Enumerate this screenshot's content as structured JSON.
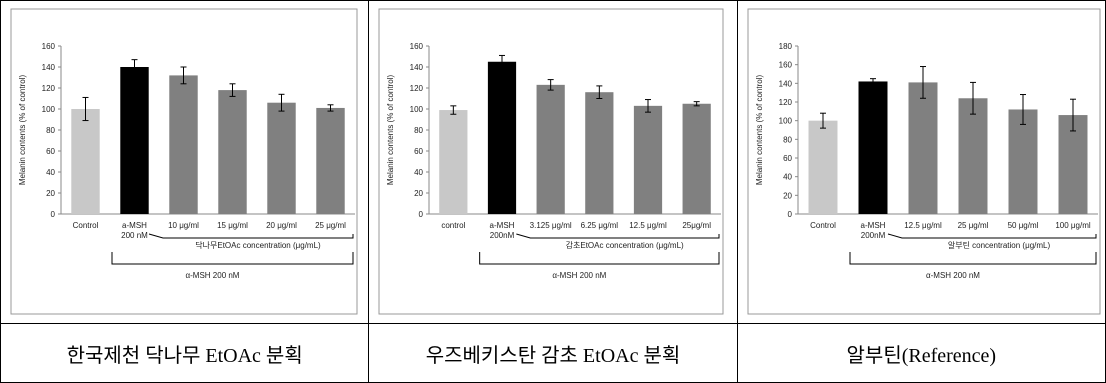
{
  "chart_data": [
    {
      "type": "bar",
      "y_label": "Melanin contents (% of control)",
      "categories": [
        "Control",
        "a-MSH\n200 nM",
        "10 μg/ml",
        "15 μg/ml",
        "20 μg/ml",
        "25 μg/ml"
      ],
      "values": [
        100,
        140,
        132,
        118,
        106,
        101
      ],
      "errors": [
        11,
        7,
        8,
        6,
        8,
        3
      ],
      "colors": [
        "#c8c8c8",
        "#000000",
        "#808080",
        "#808080",
        "#808080",
        "#808080"
      ],
      "ylim": [
        0,
        160
      ],
      "yticks": [
        0,
        20,
        40,
        60,
        80,
        100,
        120,
        140,
        160
      ],
      "concentration_label": "닥나무EtOAc concentration (μg/mL)",
      "group_label": "α-MSH 200 nM"
    },
    {
      "type": "bar",
      "y_label": "Melanin contents (% of control)",
      "categories": [
        "control",
        "a-MSH\n200nM",
        "3.125 μg/ml",
        "6.25 μg/ml",
        "12.5 μg/ml",
        "25μg/ml"
      ],
      "values": [
        99,
        145,
        123,
        116,
        103,
        105
      ],
      "errors": [
        4,
        6,
        5,
        6,
        6,
        2
      ],
      "colors": [
        "#c8c8c8",
        "#000000",
        "#808080",
        "#808080",
        "#808080",
        "#808080"
      ],
      "ylim": [
        0,
        160
      ],
      "yticks": [
        0,
        20,
        40,
        60,
        80,
        100,
        120,
        140,
        160
      ],
      "concentration_label": "감초EtOAc concentration (μg/mL)",
      "group_label": "α-MSH 200 nM"
    },
    {
      "type": "bar",
      "y_label": "Melanin contents (% of control)",
      "categories": [
        "Control",
        "a-MSH\n200nM",
        "12.5 μg/ml",
        "25 μg/ml",
        "50 μg/ml",
        "100 μg/ml"
      ],
      "values": [
        100,
        142,
        141,
        124,
        112,
        106
      ],
      "errors": [
        8,
        3,
        17,
        17,
        16,
        17
      ],
      "colors": [
        "#c8c8c8",
        "#000000",
        "#808080",
        "#808080",
        "#808080",
        "#808080"
      ],
      "ylim": [
        0,
        180
      ],
      "yticks": [
        0,
        20,
        40,
        60,
        80,
        100,
        120,
        140,
        160,
        180
      ],
      "concentration_label": "알부틴 concentration (μg/mL)",
      "group_label": "α-MSH 200 nM"
    }
  ],
  "table": {
    "captions": [
      "한국제천 닥나무 EtOAc 분획",
      "우즈베키스탄 감초 EtOAc 분획",
      "알부틴(Reference)"
    ]
  }
}
